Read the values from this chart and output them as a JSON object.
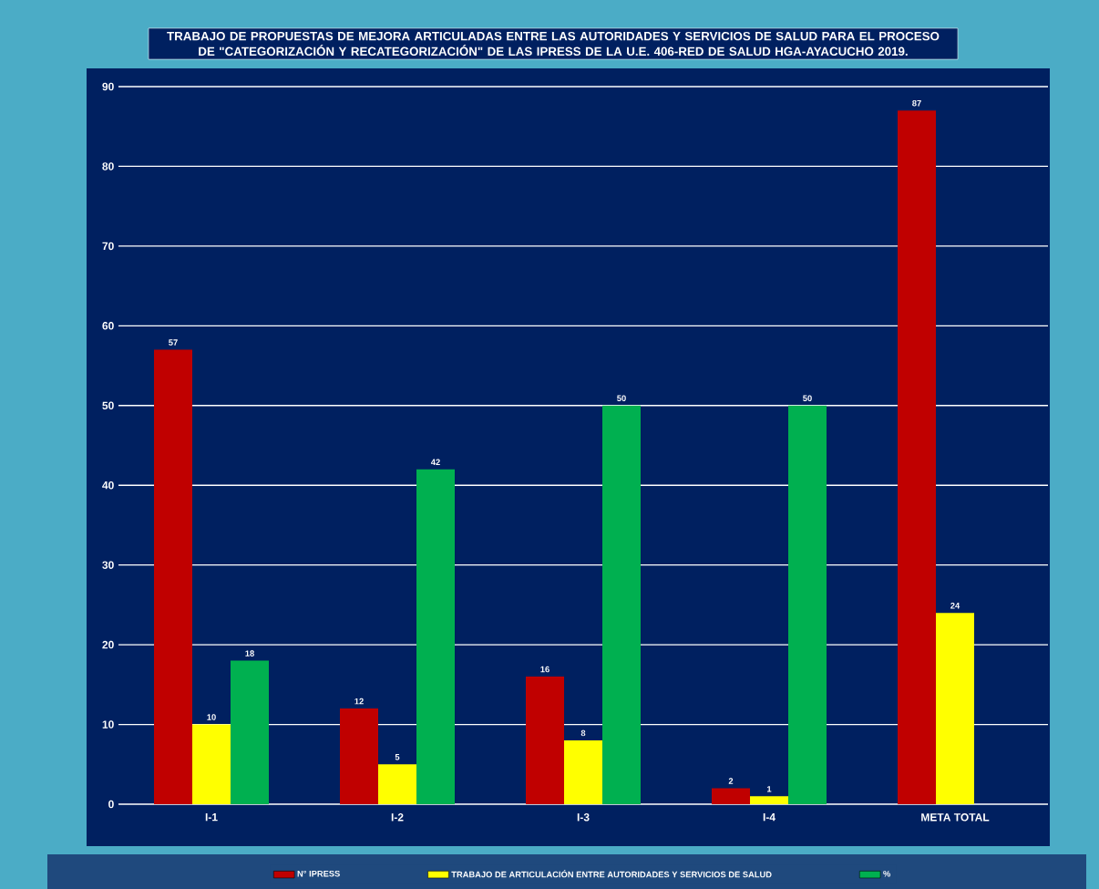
{
  "chart_data": {
    "type": "bar",
    "title": "TRABAJO DE PROPUESTAS DE MEJORA ARTICULADAS ENTRE LAS AUTORIDADES Y SERVICIOS DE SALUD PARA EL PROCESO DE \"CATEGORIZACIÓN Y RECATEGORIZACIÓN\" DE LAS IPRESS DE LA U.E. 406-RED DE SALUD HGA-AYACUCHO 2019.",
    "categories": [
      "I-1",
      "I-2",
      "I-3",
      "I-4",
      "META TOTAL"
    ],
    "series": [
      {
        "name": "N° IPRESS",
        "color": "#c00000",
        "values": [
          57,
          12,
          16,
          2,
          87
        ]
      },
      {
        "name": "TRABAJO  DE ARTICULACIÓN ENTRE AUTORIDADES Y SERVICIOS DE SALUD",
        "color": "#ffff00",
        "values": [
          10,
          5,
          8,
          1,
          24
        ]
      },
      {
        "name": "%",
        "color": "#00b050",
        "values": [
          18,
          42,
          50,
          50,
          null
        ]
      }
    ],
    "ylim": [
      0,
      90
    ],
    "yticks": [
      0,
      10,
      20,
      30,
      40,
      50,
      60,
      70,
      80,
      90
    ],
    "grid": "y",
    "legend": "bottom",
    "data_labels": true
  }
}
